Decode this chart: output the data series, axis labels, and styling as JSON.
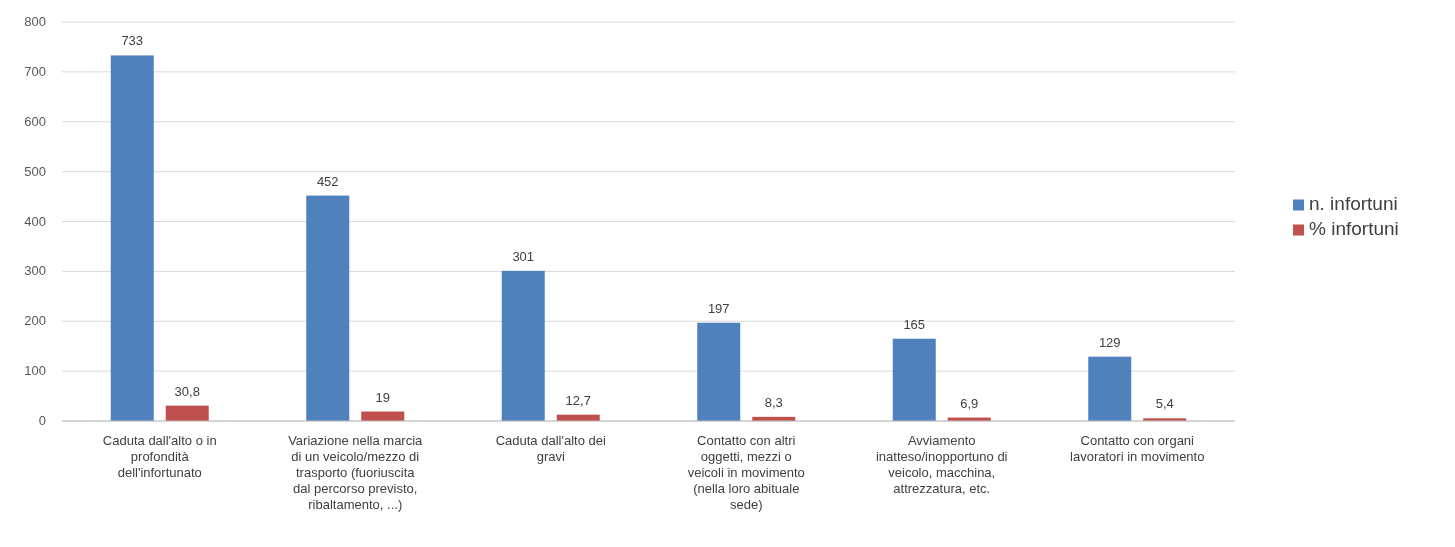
{
  "chart_data": {
    "type": "bar",
    "categories": [
      "Caduta dall'alto o in profondità dell'infortunato",
      "Variazione nella marcia di un veicolo/mezzo di trasporto (fuoriuscita dal percorso previsto, ribaltamento, ...)",
      "Caduta dall'alto dei gravi",
      "Contatto con altri oggetti, mezzi o veicoli in movimento (nella loro abituale sede)",
      "Avviamento inatteso/inopportuno di veicolo, macchina, attrezzatura, etc.",
      "Contatto con organi lavoratori in movimento"
    ],
    "series": [
      {
        "name": "n. infortuni",
        "color": "#4f81bd",
        "values": [
          733,
          452,
          301,
          197,
          165,
          129
        ],
        "value_labels": [
          "733",
          "452",
          "301",
          "197",
          "165",
          "129"
        ]
      },
      {
        "name": "% infortuni",
        "color": "#c0504d",
        "values": [
          30.8,
          19,
          12.7,
          8.3,
          6.9,
          5.4
        ],
        "value_labels": [
          "30,8",
          "19",
          "12,7",
          "8,3",
          "6,9",
          "5,4"
        ]
      }
    ],
    "ylim": [
      0,
      800
    ],
    "yticks": [
      0,
      100,
      200,
      300,
      400,
      500,
      600,
      700,
      800
    ],
    "grid": "y",
    "legend": "right"
  }
}
